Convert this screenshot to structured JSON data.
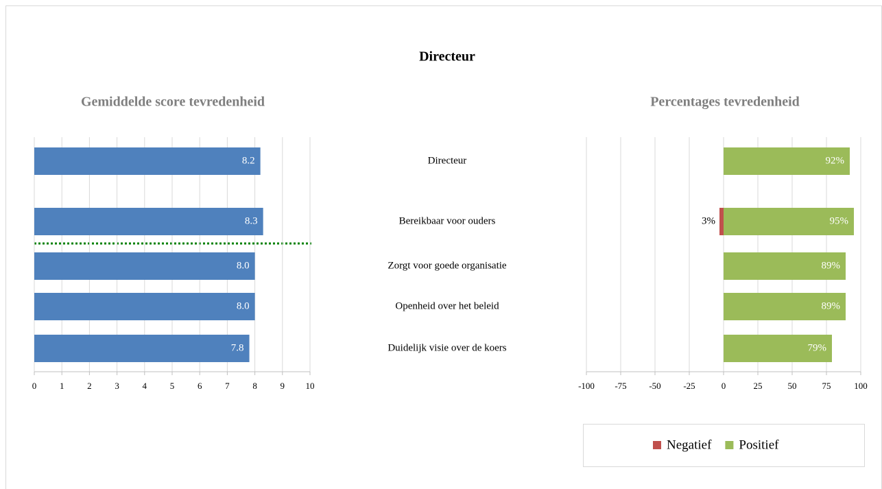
{
  "title": "Directeur",
  "categories": [
    "Directeur",
    "Bereikbaar voor ouders",
    "Zorgt voor goede organisatie",
    "Openheid over het beleid",
    "Duidelijk visie over de koers"
  ],
  "chart_data": [
    {
      "type": "bar",
      "orientation": "horizontal",
      "title": "Gemiddelde score tevredenheid",
      "values": [
        8.2,
        8.3,
        8.0,
        8.0,
        7.8
      ],
      "value_labels": [
        "8.2",
        "8.3",
        "8.0",
        "8.0",
        "7.8"
      ],
      "color": "#4f81bd",
      "xlim": [
        0,
        10
      ],
      "xticks": [
        0,
        1,
        2,
        3,
        4,
        5,
        6,
        7,
        8,
        9,
        10
      ],
      "grid": true
    },
    {
      "type": "bar",
      "orientation": "horizontal",
      "title": "Percentages tevredenheid",
      "series": [
        {
          "name": "Negatief",
          "color": "#c0504d",
          "values": [
            null,
            -3,
            null,
            null,
            null
          ],
          "value_labels": [
            null,
            "3%",
            null,
            null,
            null
          ]
        },
        {
          "name": "Positief",
          "color": "#9bbb59",
          "values": [
            92,
            95,
            89,
            89,
            79
          ],
          "value_labels": [
            "92%",
            "95%",
            "89%",
            "89%",
            "79%"
          ]
        }
      ],
      "xlim": [
        -100,
        100
      ],
      "xticks": [
        -100,
        -75,
        -50,
        -25,
        0,
        25,
        50,
        75,
        100
      ],
      "grid": true,
      "legend": "bottom"
    }
  ]
}
